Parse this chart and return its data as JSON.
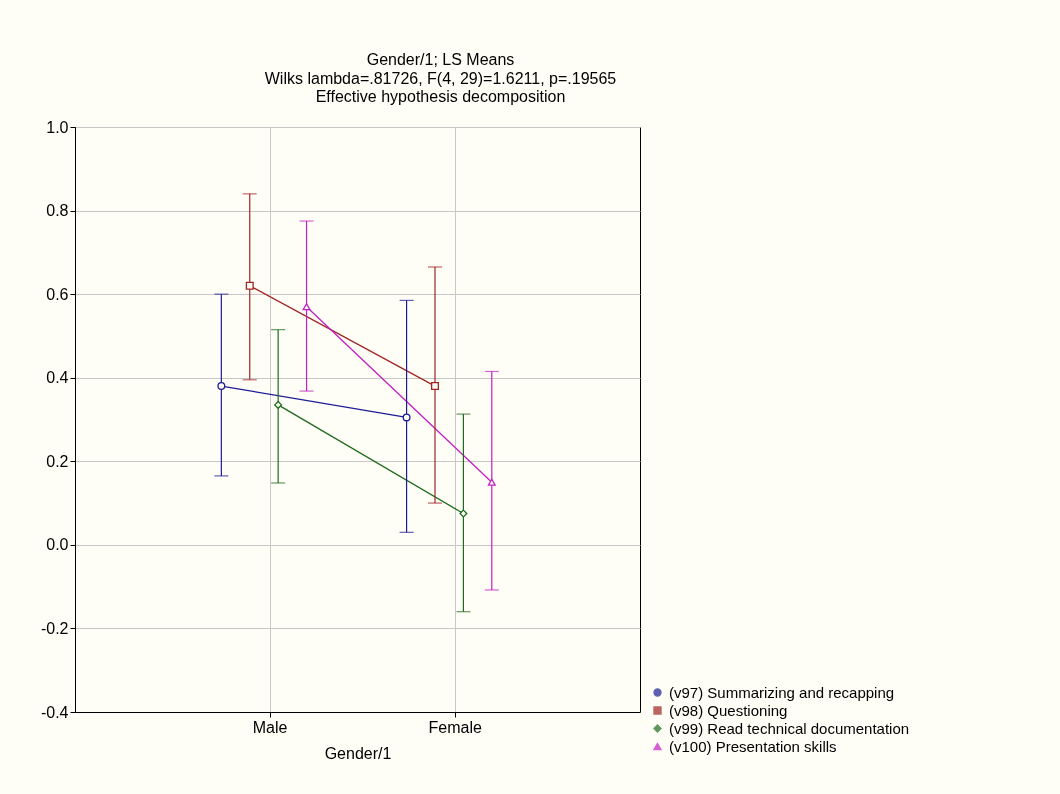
{
  "chart_data": {
    "type": "line",
    "title": "Gender/1; LS Means",
    "subtitle": "Wilks lambda=.81726, F(4, 29)=1.6211, p=.19565",
    "annotations": [
      "Effective hypothesis decomposition"
    ],
    "xlabel": "Gender/1",
    "categories": [
      "Male",
      "Female"
    ],
    "ylim": [
      -0.4,
      1.0
    ],
    "yticks": [
      {
        "value": -0.4,
        "label": "-0.4"
      },
      {
        "value": -0.2,
        "label": "-0.2"
      },
      {
        "value": 0,
        "label": "0.0"
      },
      {
        "value": 0.2,
        "label": "0.2"
      },
      {
        "value": 0.4,
        "label": "0.4"
      },
      {
        "value": 0.6,
        "label": "0.6"
      },
      {
        "value": 0.8,
        "label": "0.8"
      },
      {
        "value": 1.0,
        "label": "1.0"
      }
    ],
    "grid": true,
    "legend": "bottom right",
    "series": [
      {
        "name": "(v97) Summarizing and recapping",
        "color": "#1c1c96",
        "marker": "circle",
        "values": [
          0.38,
          0.305
        ],
        "errors": [
          [
            0.165,
            0.6
          ],
          [
            0.03,
            0.585
          ]
        ]
      },
      {
        "name": "(v98) Questioning",
        "color": "#a02424",
        "marker": "square",
        "values": [
          0.62,
          0.38
        ],
        "errors": [
          [
            0.395,
            0.84
          ],
          [
            0.1,
            0.665
          ]
        ]
      },
      {
        "name": "(v99) Read technical documentation",
        "color": "#1f6b1f",
        "marker": "diamond",
        "values": [
          0.335,
          0.075
        ],
        "errors": [
          [
            0.148,
            0.515
          ],
          [
            -0.16,
            0.313
          ]
        ]
      },
      {
        "name": "(v100) Presentation skills",
        "color": "#c21fc2",
        "marker": "triangle",
        "values": [
          0.57,
          0.15
        ],
        "errors": [
          [
            0.368,
            0.775
          ],
          [
            -0.108,
            0.415
          ]
        ]
      }
    ]
  }
}
